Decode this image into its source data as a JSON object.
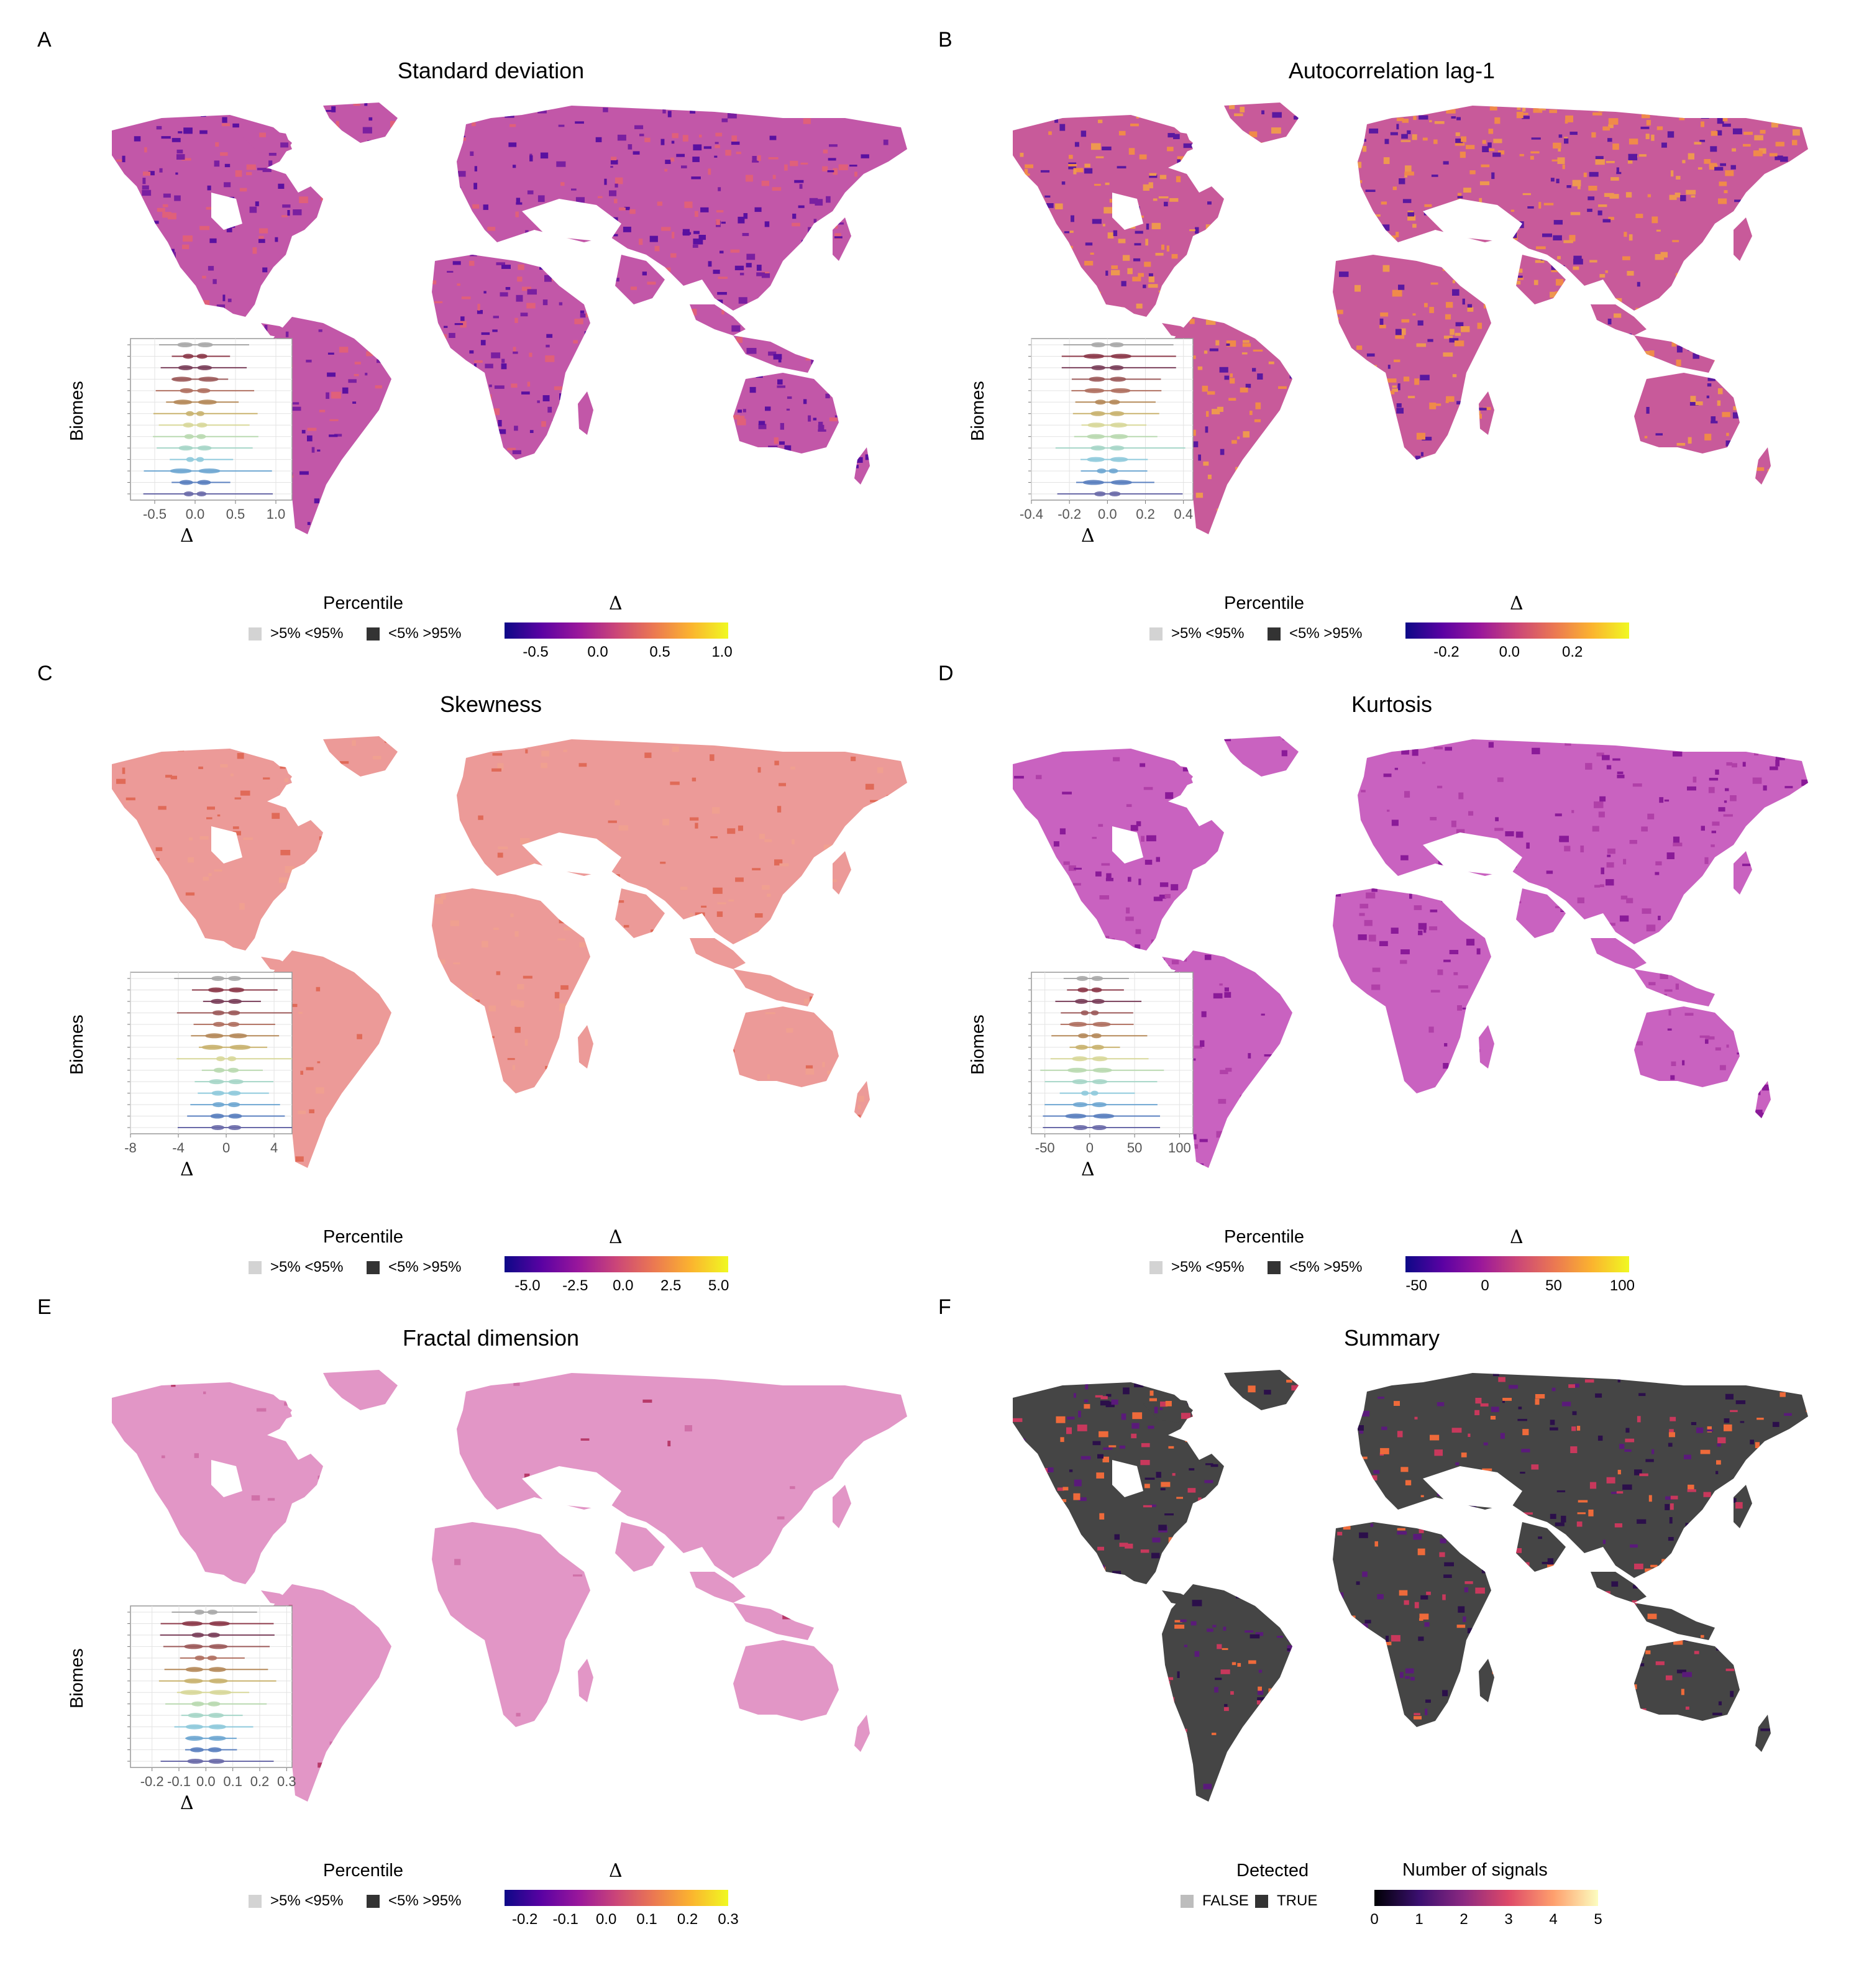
{
  "colors": {
    "plasma": [
      "#0d0887",
      "#5b02a3",
      "#9a179b",
      "#cb4678",
      "#eb7852",
      "#fbb32f",
      "#f0f921"
    ],
    "magma": [
      "#000004",
      "#3b0f70",
      "#8c2981",
      "#de4968",
      "#fe9f6d",
      "#fcfdbf"
    ],
    "biome_colors": [
      "#a8a8a8",
      "#8c3a4a",
      "#7a3f5a",
      "#9c5a5a",
      "#b07060",
      "#b58a5a",
      "#c9b36f",
      "#d8d89a",
      "#b9d9b0",
      "#a6d6c8",
      "#8fcadc",
      "#6fa7d2",
      "#5a7fbf",
      "#6a6aa8",
      "#7a5a98"
    ],
    "percentile_light": "#d3d3d3",
    "percentile_dark": "#333333"
  },
  "percentile_legend": {
    "title": "Percentile",
    "items": [
      ">5% <95%",
      "<5% >95%"
    ]
  },
  "detected_legend": {
    "title": "Detected",
    "items": [
      "FALSE",
      "TRUE"
    ]
  },
  "delta_symbol": "Δ",
  "inset_y_title": "Biomes",
  "panels": [
    {
      "letter": "A",
      "title": "Standard deviation",
      "legend_title": "Δ",
      "legend_range": [
        -0.75,
        1.05
      ],
      "legend_ticks": [
        "-0.5",
        "0.0",
        "0.5",
        "1.0"
      ],
      "legend_tick_values": [
        -0.5,
        0.0,
        0.5,
        1.0
      ],
      "inset_xlim": [
        -0.8,
        1.2
      ],
      "inset_ticks": [
        "-0.5",
        "0.0",
        "0.5",
        "1.0"
      ],
      "inset_tick_values": [
        -0.5,
        0.0,
        0.5,
        1.0
      ]
    },
    {
      "letter": "B",
      "title": "Autocorrelation lag-1",
      "legend_title": "Δ",
      "legend_range": [
        -0.33,
        0.38
      ],
      "legend_ticks": [
        "-0.2",
        "0.0",
        "0.2"
      ],
      "legend_tick_values": [
        -0.2,
        0.0,
        0.2
      ],
      "inset_xlim": [
        -0.4,
        0.45
      ],
      "inset_ticks": [
        "-0.4",
        "-0.2",
        "0.0",
        "0.2",
        "0.4"
      ],
      "inset_tick_values": [
        -0.4,
        -0.2,
        0.0,
        0.2,
        0.4
      ]
    },
    {
      "letter": "C",
      "title": "Skewness",
      "legend_title": "Δ",
      "legend_range": [
        -6.2,
        5.5
      ],
      "legend_ticks": [
        "-5.0",
        "-2.5",
        "0.0",
        "2.5",
        "5.0"
      ],
      "legend_tick_values": [
        -5.0,
        -2.5,
        0.0,
        2.5,
        5.0
      ],
      "inset_xlim": [
        -8,
        5.5
      ],
      "inset_ticks": [
        "-8",
        "-4",
        "0",
        "4"
      ],
      "inset_tick_values": [
        -8,
        -4,
        0,
        4
      ]
    },
    {
      "letter": "D",
      "title": "Kurtosis",
      "legend_title": "Δ",
      "legend_range": [
        -58,
        105
      ],
      "legend_ticks": [
        "-50",
        "0",
        "50",
        "100"
      ],
      "legend_tick_values": [
        -50,
        0,
        50,
        100
      ],
      "inset_xlim": [
        -65,
        115
      ],
      "inset_ticks": [
        "-50",
        "0",
        "50",
        "100"
      ],
      "inset_tick_values": [
        -50,
        0,
        50,
        100
      ]
    },
    {
      "letter": "E",
      "title": "Fractal dimension",
      "legend_title": "Δ",
      "legend_range": [
        -0.25,
        0.3
      ],
      "legend_ticks": [
        "-0.2",
        "-0.1",
        "0.0",
        "0.1",
        "0.2",
        "0.3"
      ],
      "legend_tick_values": [
        -0.2,
        -0.1,
        0.0,
        0.1,
        0.2,
        0.3
      ],
      "inset_xlim": [
        -0.28,
        0.32
      ],
      "inset_ticks": [
        "-0.2",
        "-0.1",
        "0.0",
        "0.1",
        "0.2",
        "0.3"
      ],
      "inset_tick_values": [
        -0.2,
        -0.1,
        0.0,
        0.1,
        0.2,
        0.3
      ]
    },
    {
      "letter": "F",
      "title": "Summary",
      "legend_title": "Number of signals",
      "legend_range": [
        0,
        5
      ],
      "legend_ticks": [
        "0",
        "1",
        "2",
        "3",
        "4",
        "5"
      ],
      "legend_tick_values": [
        0,
        1,
        2,
        3,
        4,
        5
      ]
    }
  ],
  "chart_data": [
    {
      "type": "heatmap",
      "panel": "A",
      "title": "Standard deviation",
      "colorbar_label": "Δ",
      "colorbar_range": [
        -0.75,
        1.05
      ],
      "inset": {
        "type": "violin",
        "ylabel": "Biomes",
        "xlabel": "Δ",
        "xlim": [
          -0.8,
          1.2
        ],
        "n_biomes": 14
      }
    },
    {
      "type": "heatmap",
      "panel": "B",
      "title": "Autocorrelation lag-1",
      "colorbar_label": "Δ",
      "colorbar_range": [
        -0.33,
        0.38
      ],
      "inset": {
        "type": "violin",
        "ylabel": "Biomes",
        "xlabel": "Δ",
        "xlim": [
          -0.4,
          0.45
        ],
        "n_biomes": 14
      }
    },
    {
      "type": "heatmap",
      "panel": "C",
      "title": "Skewness",
      "colorbar_label": "Δ",
      "colorbar_range": [
        -6.2,
        5.5
      ],
      "inset": {
        "type": "violin",
        "ylabel": "Biomes",
        "xlabel": "Δ",
        "xlim": [
          -8,
          5.5
        ],
        "n_biomes": 14
      }
    },
    {
      "type": "heatmap",
      "panel": "D",
      "title": "Kurtosis",
      "colorbar_label": "Δ",
      "colorbar_range": [
        -58,
        105
      ],
      "inset": {
        "type": "violin",
        "ylabel": "Biomes",
        "xlabel": "Δ",
        "xlim": [
          -65,
          115
        ],
        "n_biomes": 14
      }
    },
    {
      "type": "heatmap",
      "panel": "E",
      "title": "Fractal dimension",
      "colorbar_label": "Δ",
      "colorbar_range": [
        -0.25,
        0.3
      ],
      "inset": {
        "type": "violin",
        "ylabel": "Biomes",
        "xlabel": "Δ",
        "xlim": [
          -0.28,
          0.32
        ],
        "n_biomes": 14
      }
    },
    {
      "type": "heatmap",
      "panel": "F",
      "title": "Summary",
      "colorbar_label": "Number of signals",
      "colorbar_range": [
        0,
        5
      ]
    }
  ]
}
